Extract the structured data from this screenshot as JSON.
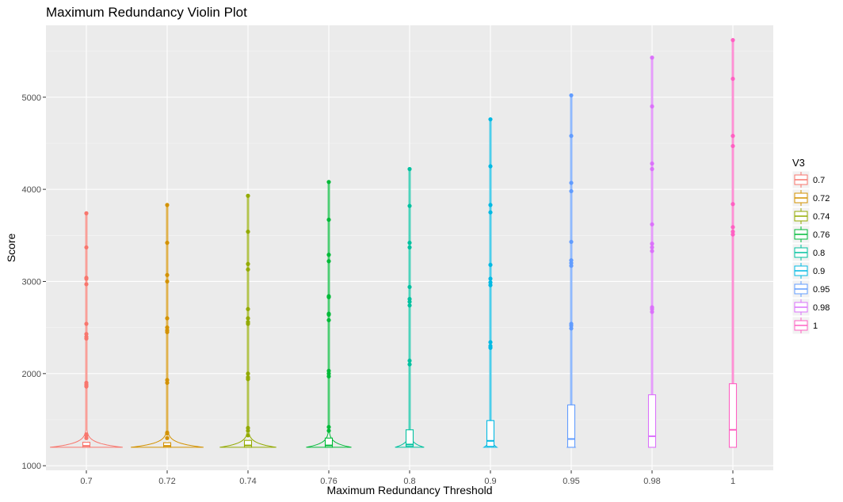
{
  "chart_data": {
    "type": "violin",
    "title": "Maximum Redundancy Violin Plot",
    "xlabel": "Maximum Redundancy Threshold",
    "ylabel": "Score",
    "categories": [
      "0.7",
      "0.72",
      "0.74",
      "0.76",
      "0.8",
      "0.9",
      "0.95",
      "0.98",
      "1"
    ],
    "ylim": [
      950,
      5780
    ],
    "yticks": [
      1000,
      2000,
      3000,
      4000,
      5000
    ],
    "grid": true,
    "legend": {
      "title": "V3",
      "position": "right"
    },
    "colors": [
      "#F8766D",
      "#D39200",
      "#93AA00",
      "#00BA38",
      "#00C19F",
      "#00B9E3",
      "#619CFF",
      "#DB72FB",
      "#FF61C3"
    ],
    "series": [
      {
        "name": "0.7",
        "box": {
          "q1": 1200,
          "median": 1215,
          "q3": 1255
        },
        "max": 3740,
        "violin_half_width": 0.45,
        "outliers": [
          3740,
          3370,
          3040,
          3030,
          2970,
          2540,
          2430,
          2400,
          2380,
          1900,
          1880,
          1870,
          1860,
          1340,
          1330,
          1300
        ]
      },
      {
        "name": "0.72",
        "box": {
          "q1": 1200,
          "median": 1215,
          "q3": 1250
        },
        "max": 3830,
        "violin_half_width": 0.45,
        "outliers": [
          3830,
          3420,
          3070,
          3000,
          2600,
          2500,
          2470,
          2450,
          1930,
          1900,
          1360,
          1350,
          1300
        ]
      },
      {
        "name": "0.74",
        "box": {
          "q1": 1200,
          "median": 1220,
          "q3": 1275
        },
        "max": 3930,
        "violin_half_width": 0.35,
        "outliers": [
          3930,
          3540,
          3190,
          3130,
          2700,
          2600,
          2560,
          2540,
          2000,
          1960,
          1940,
          1410,
          1380,
          1330
        ]
      },
      {
        "name": "0.76",
        "box": {
          "q1": 1200,
          "median": 1220,
          "q3": 1300
        },
        "max": 4080,
        "violin_half_width": 0.28,
        "outliers": [
          4080,
          3670,
          3290,
          3220,
          2840,
          2830,
          2650,
          2640,
          2580,
          2030,
          2000,
          1970,
          1420,
          1380
        ]
      },
      {
        "name": "0.8",
        "box": {
          "q1": 1210,
          "median": 1230,
          "q3": 1390
        },
        "max": 4220,
        "violin_half_width": 0.18,
        "outliers": [
          4220,
          3820,
          3420,
          3370,
          2940,
          2810,
          2780,
          2740,
          2140,
          2100
        ]
      },
      {
        "name": "0.9",
        "box": {
          "q1": 1210,
          "median": 1270,
          "q3": 1490
        },
        "max": 4760,
        "violin_half_width": 0.08,
        "outliers": [
          4760,
          4250,
          3830,
          3750,
          3180,
          3030,
          2990,
          2960,
          2340,
          2300,
          2280
        ]
      },
      {
        "name": "0.95",
        "box": {
          "q1": 1200,
          "median": 1290,
          "q3": 1660
        },
        "max": 5020,
        "violin_half_width": 0.05,
        "outliers": [
          5020,
          4580,
          4070,
          3980,
          3430,
          3230,
          3200,
          3170,
          2540,
          2520,
          2490
        ]
      },
      {
        "name": "0.98",
        "box": {
          "q1": 1200,
          "median": 1320,
          "q3": 1770
        },
        "max": 5430,
        "violin_half_width": 0.04,
        "outliers": [
          5430,
          4900,
          4280,
          4220,
          3620,
          3410,
          3370,
          3330,
          2720,
          2700,
          2670
        ]
      },
      {
        "name": "1",
        "box": {
          "q1": 1200,
          "median": 1390,
          "q3": 1890
        },
        "max": 5620,
        "violin_half_width": 0.04,
        "outliers": [
          5620,
          5200,
          4580,
          4470,
          3840,
          3590,
          3540,
          3510
        ]
      }
    ]
  }
}
